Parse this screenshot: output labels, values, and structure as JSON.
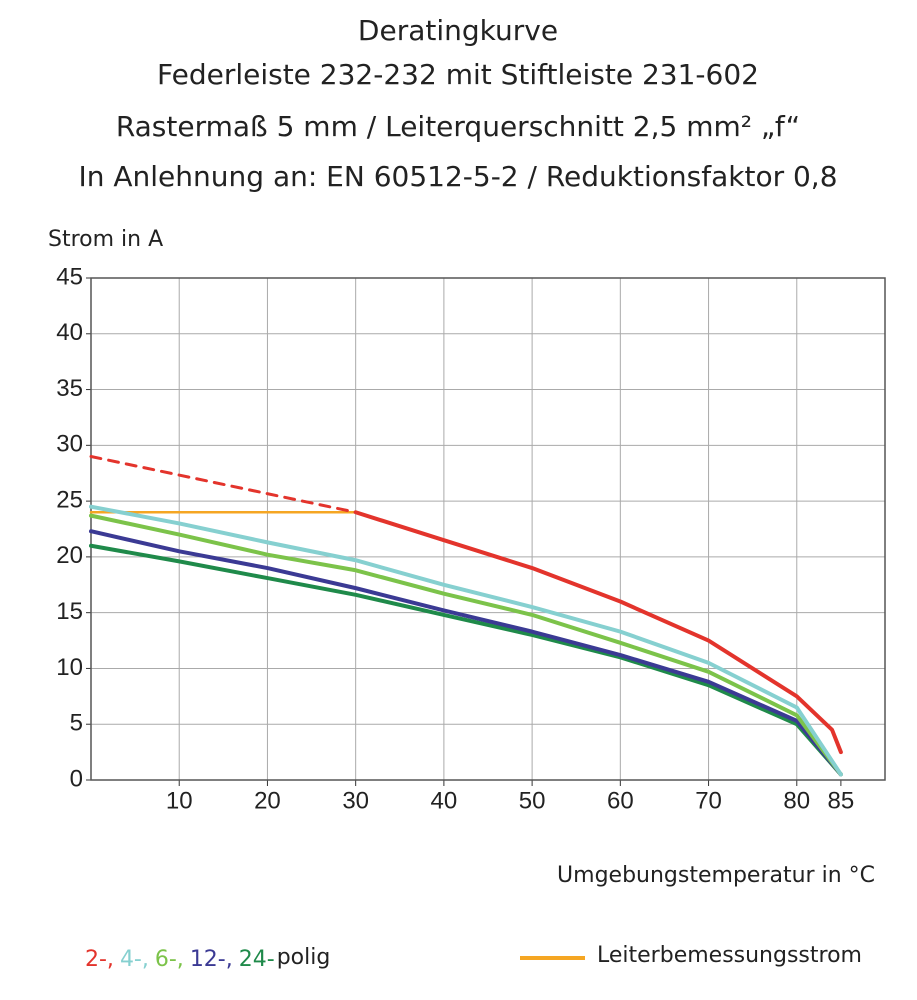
{
  "chart_data": {
    "type": "line",
    "title": [
      "Deratingkurve",
      "Federleiste 232-232 mit Stiftleiste 231-602",
      "Rastermaß 5 mm / Leiterquerschnitt 2,5 mm² „f“",
      "In Anlehnung an: EN 60512-5-2 / Reduktionsfaktor 0,8"
    ],
    "y_label": "Strom in A",
    "x_label": "Umgebungstemperatur in °C",
    "xlim": [
      0,
      90
    ],
    "xticks": [
      10,
      20,
      30,
      40,
      50,
      60,
      70,
      80,
      85
    ],
    "ylim": [
      0,
      45
    ],
    "yticks": [
      0,
      5,
      10,
      15,
      20,
      25,
      30,
      35,
      40,
      45
    ],
    "grid": true,
    "legend_suffix": "polig",
    "series": [
      {
        "name": "2-,",
        "color": "#e3342c",
        "x": [
          30,
          40,
          50,
          60,
          70,
          80,
          84,
          85
        ],
        "values": [
          24,
          21.5,
          19,
          16,
          12.5,
          7.5,
          4.5,
          2.5
        ],
        "dashed": {
          "x": [
            0,
            30
          ],
          "values": [
            29,
            24
          ]
        }
      },
      {
        "name": "4-,",
        "color": "#86d0d0",
        "x": [
          0,
          10,
          20,
          30,
          40,
          50,
          60,
          70,
          80,
          85
        ],
        "values": [
          24.5,
          23,
          21.3,
          19.7,
          17.5,
          15.5,
          13.3,
          10.5,
          6.5,
          0.5
        ]
      },
      {
        "name": "6-,",
        "color": "#7cc34a",
        "x": [
          0,
          10,
          20,
          30,
          40,
          50,
          60,
          70,
          80,
          85
        ],
        "values": [
          23.7,
          22,
          20.2,
          18.8,
          16.7,
          14.8,
          12.3,
          9.7,
          5.8,
          0.5
        ]
      },
      {
        "name": "12-,",
        "color": "#3b3a94",
        "x": [
          0,
          10,
          20,
          30,
          40,
          50,
          60,
          70,
          80,
          85
        ],
        "values": [
          22.3,
          20.5,
          19,
          17.2,
          15.2,
          13.3,
          11.2,
          8.8,
          5.3,
          0.5
        ]
      },
      {
        "name": "24-",
        "color": "#1f8a4a",
        "x": [
          0,
          10,
          20,
          30,
          40,
          50,
          60,
          70,
          80,
          85
        ],
        "values": [
          21,
          19.6,
          18.1,
          16.6,
          14.8,
          13,
          11,
          8.5,
          5,
          0.5
        ]
      },
      {
        "name": "Leiterbemessungsstrom",
        "color": "#f5a623",
        "x": [
          0,
          30
        ],
        "values": [
          24,
          24
        ]
      }
    ]
  }
}
